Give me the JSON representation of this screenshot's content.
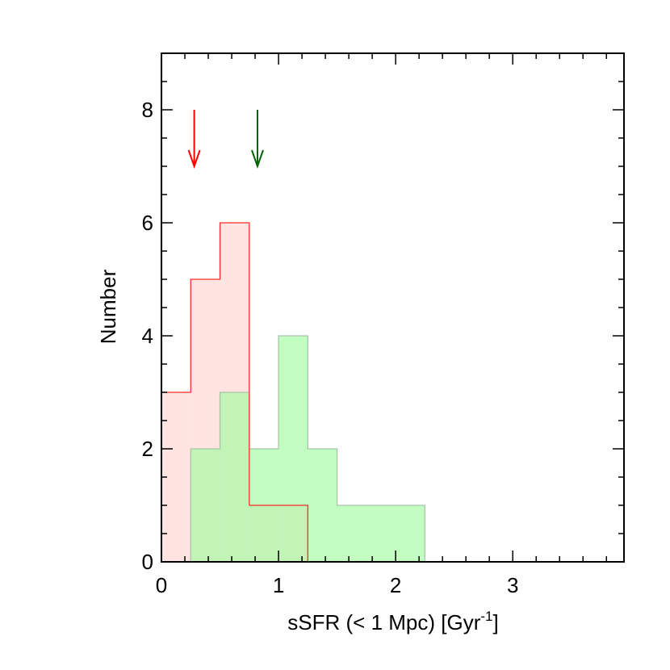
{
  "chart_data": {
    "type": "histogram",
    "title": "",
    "xlabel": "sSFR (< 1 Mpc) [Gyr",
    "xlabel_superscript": "-1",
    "xlabel_suffix": "]",
    "ylabel": "Number",
    "xlim": [
      0,
      3.95
    ],
    "ylim": [
      0,
      9
    ],
    "xticks": [
      0,
      1,
      2,
      3
    ],
    "xtick_labels": [
      "0",
      "1",
      "2",
      "3"
    ],
    "yticks": [
      0,
      2,
      4,
      6,
      8
    ],
    "ytick_labels": [
      "0",
      "2",
      "4",
      "6",
      "8"
    ],
    "bin_width": 0.25,
    "series": [
      {
        "name": "red",
        "bin_edges": [
          0,
          0.25,
          0.5,
          0.75,
          1.0,
          1.25
        ],
        "counts": [
          3,
          5,
          6,
          1,
          1
        ],
        "fill": "#ffe4e1",
        "stroke": "#ff2a2a",
        "marker_x": 0.28,
        "marker_color": "#ff0000"
      },
      {
        "name": "green",
        "bin_edges": [
          0.25,
          0.5,
          0.75,
          1.0,
          1.25,
          1.5,
          1.75,
          2.0,
          2.25
        ],
        "counts": [
          2,
          3,
          2,
          4,
          2,
          1,
          1,
          1
        ],
        "fill": "#9cfc9c",
        "fill_opacity": 0.62,
        "stroke": "#aac4aa",
        "marker_x": 0.82,
        "marker_color": "#006400"
      }
    ],
    "marker_top_y": 8,
    "marker_bottom_y": 7
  }
}
